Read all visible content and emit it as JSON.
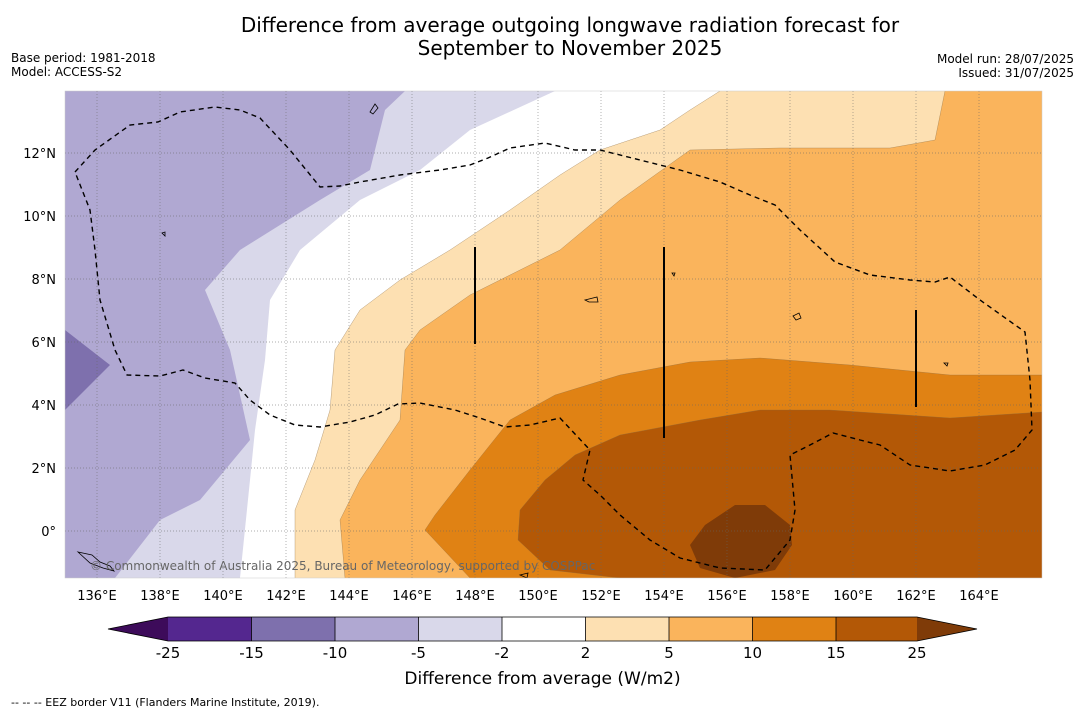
{
  "title_line1": "Difference from average outgoing longwave radiation forecast for",
  "title_line2": "September to November 2025",
  "base_period": "Base period: 1981-2018",
  "model": "Model: ACCESS-S2",
  "model_run": "Model run: 28/07/2025",
  "issued": "Issued: 31/07/2025",
  "copyright": "© Commonwealth of Australia 2025, Bureau of Meteorology, supported by COSPPac",
  "lon_ticks": [
    "136°E",
    "138°E",
    "140°E",
    "142°E",
    "144°E",
    "146°E",
    "148°E",
    "150°E",
    "152°E",
    "154°E",
    "156°E",
    "158°E",
    "160°E",
    "162°E",
    "164°E"
  ],
  "lat_ticks": [
    "12°N",
    "10°N",
    "8°N",
    "6°N",
    "4°N",
    "2°N",
    "0°"
  ],
  "colorbar": {
    "label": "Difference from average (W/m2)",
    "tick_labels": [
      "-25",
      "-15",
      "-10",
      "-5",
      "-2",
      "2",
      "5",
      "10",
      "15",
      "25"
    ],
    "colors": {
      "below_min": "#3d0b5a",
      "c1": "#54278f",
      "c2": "#7e70ad",
      "c3": "#b0a8d2",
      "c4": "#d9d8ea",
      "c5": "#ffffff",
      "c6": "#fde0b2",
      "c7": "#fab45c",
      "c8": "#e08214",
      "c9": "#b35806",
      "above_max": "#7f3b08"
    }
  },
  "legend_note": "--  --  -- EEZ border V11 (Flanders Marine Institute, 2019)."
}
